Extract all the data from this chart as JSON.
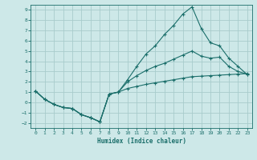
{
  "xlabel": "Humidex (Indice chaleur)",
  "background_color": "#cde8e8",
  "grid_color": "#a8cccc",
  "line_color": "#1a6e6a",
  "xlim": [
    -0.5,
    23.5
  ],
  "ylim": [
    -2.5,
    9.5
  ],
  "xticks": [
    0,
    1,
    2,
    3,
    4,
    5,
    6,
    7,
    8,
    9,
    10,
    11,
    12,
    13,
    14,
    15,
    16,
    17,
    18,
    19,
    20,
    21,
    22,
    23
  ],
  "yticks": [
    -2,
    -1,
    0,
    1,
    2,
    3,
    4,
    5,
    6,
    7,
    8,
    9
  ],
  "line1_x": [
    0,
    1,
    2,
    3,
    4,
    5,
    6,
    7,
    8,
    9,
    10,
    11,
    12,
    13,
    14,
    15,
    16,
    17,
    18,
    19,
    20,
    21,
    22,
    23
  ],
  "line1_y": [
    1.1,
    0.3,
    -0.2,
    -0.5,
    -0.6,
    -1.2,
    -1.5,
    -1.9,
    0.8,
    1.0,
    2.2,
    3.5,
    4.7,
    5.5,
    6.6,
    7.5,
    8.6,
    9.3,
    7.2,
    5.8,
    5.5,
    4.3,
    3.5,
    2.7
  ],
  "line2_x": [
    0,
    1,
    2,
    3,
    4,
    5,
    6,
    7,
    8,
    9,
    10,
    11,
    12,
    13,
    14,
    15,
    16,
    17,
    18,
    19,
    20,
    21,
    22,
    23
  ],
  "line2_y": [
    1.1,
    0.3,
    -0.2,
    -0.5,
    -0.6,
    -1.2,
    -1.5,
    -1.9,
    0.8,
    1.0,
    2.0,
    2.6,
    3.1,
    3.5,
    3.8,
    4.2,
    4.6,
    5.0,
    4.5,
    4.3,
    4.4,
    3.5,
    3.0,
    2.75
  ],
  "line3_x": [
    0,
    1,
    2,
    3,
    4,
    5,
    6,
    7,
    8,
    9,
    10,
    11,
    12,
    13,
    14,
    15,
    16,
    17,
    18,
    19,
    20,
    21,
    22,
    23
  ],
  "line3_y": [
    1.1,
    0.3,
    -0.2,
    -0.5,
    -0.6,
    -1.2,
    -1.5,
    -1.9,
    0.8,
    1.0,
    1.35,
    1.55,
    1.75,
    1.9,
    2.05,
    2.2,
    2.35,
    2.5,
    2.55,
    2.6,
    2.65,
    2.7,
    2.75,
    2.8
  ]
}
